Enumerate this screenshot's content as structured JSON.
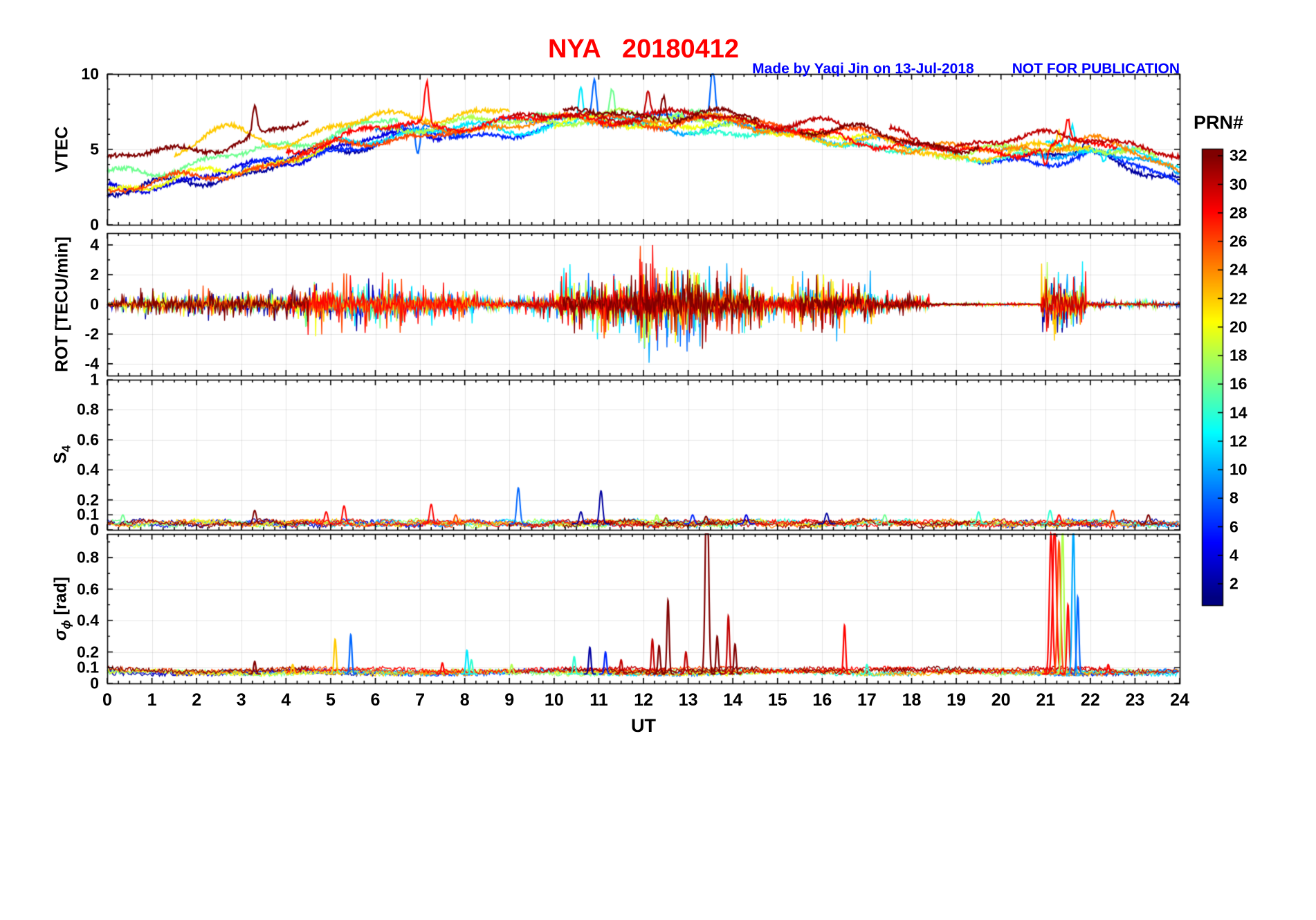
{
  "title": "NYA   20180412",
  "credit": {
    "made_by": "Made by Yaqi Jin on 13-Jul-2018",
    "not_for_publication": "NOT FOR PUBLICATION"
  },
  "colors": {
    "title": "#ff0000",
    "credit": "#0000ff",
    "axis": "#000000"
  },
  "colorbar": {
    "title": "PRN#",
    "min": 1,
    "max": 32,
    "ticks": [
      2,
      4,
      6,
      8,
      10,
      12,
      14,
      16,
      18,
      20,
      22,
      24,
      26,
      28,
      30,
      32
    ]
  },
  "chart_data": {
    "type": "line",
    "station": "NYA",
    "date": "20180412",
    "x_axis": {
      "label": "UT",
      "range": [
        0,
        24
      ],
      "ticks": [
        0,
        1,
        2,
        3,
        4,
        5,
        6,
        7,
        8,
        9,
        10,
        11,
        12,
        13,
        14,
        15,
        16,
        17,
        18,
        19,
        20,
        21,
        22,
        23,
        24
      ]
    },
    "panels": [
      {
        "name": "VTEC",
        "ylabel": "VTEC",
        "ylim": [
          0,
          10
        ],
        "yticks": [
          0,
          5,
          10
        ]
      },
      {
        "name": "ROT",
        "ylabel": "ROT [TECU/min]",
        "ylim": [
          -4.8,
          4.8
        ],
        "yticks": [
          -4,
          -2,
          0,
          2,
          4
        ]
      },
      {
        "name": "S4",
        "ylabel_main": "S",
        "ylabel_sub": "4",
        "ylim": [
          0,
          1
        ],
        "yticks": [
          0,
          0.1,
          0.2,
          0.4,
          0.6,
          0.8,
          1
        ]
      },
      {
        "name": "sigma_phi",
        "ylabel_main": "σ",
        "ylabel_sub": "ϕ",
        "ylabel_unit": " [rad]",
        "ylim": [
          0,
          0.95
        ],
        "yticks": [
          0,
          0.1,
          0.2,
          0.4,
          0.6,
          0.8
        ]
      }
    ],
    "vtec_trend": {
      "hours": [
        0,
        1,
        2,
        3,
        4,
        5,
        6,
        7,
        8,
        9,
        10,
        11,
        12,
        13,
        14,
        15,
        16,
        17,
        18,
        19,
        20,
        21,
        22,
        23,
        24
      ],
      "values": [
        2.6,
        3.0,
        3.4,
        3.9,
        4.6,
        5.4,
        6.0,
        6.3,
        6.4,
        6.5,
        6.7,
        6.9,
        6.8,
        6.8,
        6.7,
        6.4,
        6.2,
        5.9,
        5.3,
        5.0,
        5.1,
        5.4,
        5.6,
        4.9,
        3.8
      ]
    },
    "arcs": [
      {
        "prn": 2,
        "t0": 0,
        "t1": 6,
        "off": -0.5
      },
      {
        "prn": 2,
        "t0": 20.5,
        "t1": 24,
        "off": -0.9,
        "ev": [
          {
            "t": 21.9,
            "dv": 0.8
          }
        ]
      },
      {
        "prn": 4,
        "t0": 0,
        "t1": 7.5,
        "off": -0.3
      },
      {
        "prn": 6,
        "t0": 3,
        "t1": 10,
        "off": -0.4
      },
      {
        "prn": 6,
        "t0": 19.5,
        "t1": 24,
        "off": -1.0
      },
      {
        "prn": 8,
        "t0": 6,
        "t1": 13.8,
        "off": 0.2,
        "ev": [
          {
            "t": 6.95,
            "dv": -2.0
          },
          {
            "t": 10.9,
            "dv": 2.8
          },
          {
            "t": 13.55,
            "dv": 3.4
          }
        ]
      },
      {
        "prn": 10,
        "t0": 11,
        "t1": 18,
        "off": -0.3
      },
      {
        "prn": 10,
        "t0": 20,
        "t1": 24,
        "off": -0.6
      },
      {
        "prn": 12,
        "t0": 5,
        "t1": 12,
        "off": -0.1,
        "ev": [
          {
            "t": 10.6,
            "dv": 2.3
          }
        ]
      },
      {
        "prn": 12,
        "t0": 21,
        "t1": 24,
        "off": -0.2,
        "ev": [
          {
            "t": 21.6,
            "dv": 1.5
          },
          {
            "t": 22.3,
            "dv": -0.8
          }
        ]
      },
      {
        "prn": 14,
        "t0": 13,
        "t1": 20.5,
        "off": -0.5
      },
      {
        "prn": 16,
        "t0": 0,
        "t1": 6.5,
        "off": 0.7
      },
      {
        "prn": 16,
        "t0": 9.5,
        "t1": 14.5,
        "off": 0.3,
        "ev": [
          {
            "t": 11.3,
            "dv": 1.8
          }
        ]
      },
      {
        "prn": 18,
        "t0": 6,
        "t1": 14,
        "off": 0.3
      },
      {
        "prn": 18,
        "t0": 18.5,
        "t1": 23.5,
        "off": -0.3
      },
      {
        "prn": 20,
        "t0": 0,
        "t1": 5,
        "off": -0.2
      },
      {
        "prn": 20,
        "t0": 10,
        "t1": 17,
        "off": -0.1
      },
      {
        "prn": 22,
        "t0": 1.5,
        "t1": 9,
        "off": 1.0,
        "ev": [
          {
            "t": 2.5,
            "dv": 1.6,
            "w": 0.8
          }
        ]
      },
      {
        "prn": 22,
        "t0": 15,
        "t1": 22,
        "off": -0.4,
        "ev": [
          {
            "t": 21.3,
            "dv": 1.0
          }
        ]
      },
      {
        "prn": 24,
        "t0": 7,
        "t1": 15,
        "off": 0.1
      },
      {
        "prn": 24,
        "t0": 17.5,
        "t1": 24,
        "off": -0.1
      },
      {
        "prn": 26,
        "t0": 0,
        "t1": 8,
        "off": -0.3
      },
      {
        "prn": 26,
        "t0": 11,
        "t1": 18,
        "off": 0.1
      },
      {
        "prn": 28,
        "t0": 4,
        "t1": 12.5,
        "off": 0.3,
        "ev": [
          {
            "t": 7.15,
            "dv": 2.7
          }
        ]
      },
      {
        "prn": 28,
        "t0": 14.5,
        "t1": 22.6,
        "off": -0.2,
        "ev": [
          {
            "t": 21.0,
            "dv": -1.2
          },
          {
            "t": 21.5,
            "dv": 1.3
          }
        ]
      },
      {
        "prn": 30,
        "t0": 9,
        "t1": 16.5,
        "off": 0.4,
        "ev": [
          {
            "t": 12.1,
            "dv": 1.7
          }
        ]
      },
      {
        "prn": 30,
        "t0": 17.5,
        "t1": 24,
        "off": 0.4
      },
      {
        "prn": 32,
        "t0": 0,
        "t1": 4.5,
        "off": 1.7,
        "ev": [
          {
            "t": 3.3,
            "dv": 1.9
          }
        ]
      },
      {
        "prn": 32,
        "t0": 10.2,
        "t1": 14.6,
        "off": 0.5,
        "ev": [
          {
            "t": 12.45,
            "dv": 1.6
          }
        ]
      },
      {
        "prn": 32,
        "t0": 15.5,
        "t1": 19.5,
        "off": 0.2
      }
    ],
    "rot_activity": [
      [
        0,
        0.6,
        0.25
      ],
      [
        0.6,
        4.4,
        0.55
      ],
      [
        4.4,
        6.6,
        1.1
      ],
      [
        6.6,
        8.3,
        0.8
      ],
      [
        8.3,
        9.4,
        0.4
      ],
      [
        9.4,
        10.1,
        0.6
      ],
      [
        10.1,
        11.8,
        1.3
      ],
      [
        11.8,
        13.4,
        2.1
      ],
      [
        13.4,
        14.7,
        1.4
      ],
      [
        14.7,
        15.3,
        0.6
      ],
      [
        15.3,
        17.2,
        1.1
      ],
      [
        17.2,
        18.4,
        0.5
      ],
      [
        18.4,
        20.9,
        0.08
      ],
      [
        20.9,
        21.9,
        1.6
      ],
      [
        21.9,
        24,
        0.18
      ]
    ],
    "s4": {
      "baseline": 0.04,
      "events": [
        {
          "t": 0.35,
          "prn": 16,
          "v": 0.1
        },
        {
          "t": 3.3,
          "prn": 32,
          "v": 0.13
        },
        {
          "t": 4.9,
          "prn": 28,
          "v": 0.12
        },
        {
          "t": 5.3,
          "prn": 28,
          "v": 0.16
        },
        {
          "t": 7.25,
          "prn": 28,
          "v": 0.17
        },
        {
          "t": 7.8,
          "prn": 26,
          "v": 0.1
        },
        {
          "t": 9.2,
          "prn": 8,
          "v": 0.28
        },
        {
          "t": 10.6,
          "prn": 2,
          "v": 0.12
        },
        {
          "t": 11.05,
          "prn": 2,
          "v": 0.26
        },
        {
          "t": 12.3,
          "prn": 18,
          "v": 0.1
        },
        {
          "t": 12.5,
          "prn": 32,
          "v": 0.08
        },
        {
          "t": 13.1,
          "prn": 6,
          "v": 0.1
        },
        {
          "t": 13.4,
          "prn": 32,
          "v": 0.09
        },
        {
          "t": 14.3,
          "prn": 4,
          "v": 0.1
        },
        {
          "t": 16.1,
          "prn": 2,
          "v": 0.11
        },
        {
          "t": 17.4,
          "prn": 16,
          "v": 0.1
        },
        {
          "t": 19.5,
          "prn": 14,
          "v": 0.12
        },
        {
          "t": 21.1,
          "prn": 14,
          "v": 0.13
        },
        {
          "t": 21.3,
          "prn": 28,
          "v": 0.1
        },
        {
          "t": 22.5,
          "prn": 26,
          "v": 0.13
        },
        {
          "t": 23.3,
          "prn": 32,
          "v": 0.1
        }
      ]
    },
    "sigma": {
      "baseline": 0.06,
      "events": [
        {
          "t": 3.3,
          "prn": 32,
          "v": 0.14
        },
        {
          "t": 4.15,
          "prn": 22,
          "v": 0.12
        },
        {
          "t": 5.1,
          "prn": 22,
          "v": 0.28
        },
        {
          "t": 5.45,
          "prn": 8,
          "v": 0.31
        },
        {
          "t": 7.5,
          "prn": 28,
          "v": 0.13
        },
        {
          "t": 8.05,
          "prn": 12,
          "v": 0.21
        },
        {
          "t": 8.15,
          "prn": 14,
          "v": 0.15
        },
        {
          "t": 9.05,
          "prn": 18,
          "v": 0.12
        },
        {
          "t": 10.45,
          "prn": 14,
          "v": 0.17
        },
        {
          "t": 10.8,
          "prn": 2,
          "v": 0.23
        },
        {
          "t": 11.15,
          "prn": 6,
          "v": 0.2
        },
        {
          "t": 11.5,
          "prn": 30,
          "v": 0.15
        },
        {
          "t": 12.2,
          "prn": 30,
          "v": 0.28
        },
        {
          "t": 12.35,
          "prn": 32,
          "v": 0.24
        },
        {
          "t": 12.55,
          "prn": 32,
          "v": 0.53
        },
        {
          "t": 12.95,
          "prn": 30,
          "v": 0.2
        },
        {
          "t": 13.42,
          "prn": 32,
          "v": 1.4,
          "w": 0.05
        },
        {
          "t": 13.65,
          "prn": 32,
          "v": 0.3
        },
        {
          "t": 13.9,
          "prn": 30,
          "v": 0.43
        },
        {
          "t": 14.05,
          "prn": 32,
          "v": 0.25
        },
        {
          "t": 16.5,
          "prn": 28,
          "v": 0.37
        },
        {
          "t": 17.0,
          "prn": 14,
          "v": 0.12
        },
        {
          "t": 21.12,
          "prn": 28,
          "v": 0.95,
          "w": 0.05
        },
        {
          "t": 21.2,
          "prn": 28,
          "v": 1.0,
          "w": 0.06
        },
        {
          "t": 21.3,
          "prn": 26,
          "v": 0.9,
          "w": 0.05
        },
        {
          "t": 21.38,
          "prn": 18,
          "v": 1.0,
          "w": 0.04
        },
        {
          "t": 21.5,
          "prn": 28,
          "v": 0.5
        },
        {
          "t": 21.62,
          "prn": 10,
          "v": 1.0,
          "w": 0.04
        },
        {
          "t": 21.72,
          "prn": 8,
          "v": 0.55
        },
        {
          "t": 22.4,
          "prn": 28,
          "v": 0.12
        }
      ]
    }
  }
}
